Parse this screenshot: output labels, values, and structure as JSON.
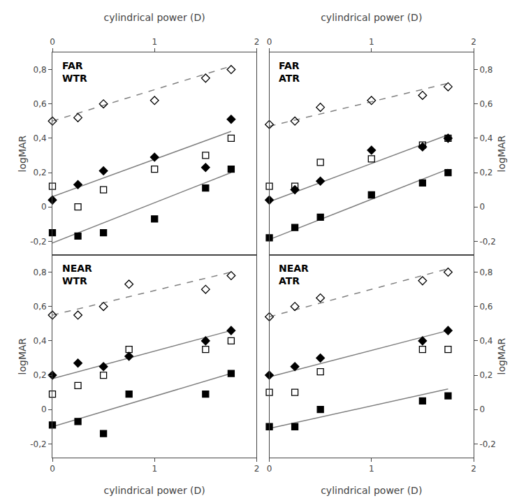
{
  "chart_data": [
    {
      "type": "scatter",
      "title": "FAR\nWTR",
      "xlabel": "cylindrical power (D)",
      "ylabel": "logMAR",
      "xlim": [
        0,
        2
      ],
      "ylim": [
        -0.28,
        0.9
      ],
      "xticks": [
        0,
        1,
        2
      ],
      "yticks": [
        {
          "value": -0.2,
          "label": "-0,2"
        },
        0,
        {
          "value": 0.2,
          "label": "0,2"
        },
        {
          "value": 0.4,
          "label": "0,4"
        },
        {
          "value": 0.6,
          "label": "0,6"
        },
        {
          "value": 0.8,
          "label": "0,8"
        }
      ],
      "grid": false,
      "series": [
        {
          "type": "line",
          "line_style": "dashed",
          "color": "#808080",
          "x": [
            0.0,
            1.75
          ],
          "values": [
            0.5,
            0.82
          ]
        },
        {
          "type": "line",
          "line_style": "solid",
          "color": "#808080",
          "x": [
            0.0,
            1.75
          ],
          "values": [
            0.06,
            0.44
          ]
        },
        {
          "type": "line",
          "line_style": "solid",
          "color": "#808080",
          "x": [
            0.0,
            1.75
          ],
          "values": [
            -0.21,
            0.2
          ]
        },
        {
          "type": "scatter",
          "marker": "diamond-open",
          "color": "#000000",
          "x": [
            0.0,
            0.25,
            0.5,
            1.0,
            1.5,
            1.75
          ],
          "values": [
            0.5,
            0.52,
            0.6,
            0.62,
            0.75,
            0.8
          ]
        },
        {
          "type": "scatter",
          "marker": "square-open",
          "color": "#000000",
          "x": [
            0.0,
            0.25,
            0.5,
            1.0,
            1.5,
            1.75
          ],
          "values": [
            0.12,
            0.0,
            0.1,
            0.22,
            0.3,
            0.4
          ]
        },
        {
          "type": "scatter",
          "marker": "diamond",
          "color": "#000000",
          "x": [
            0.0,
            0.25,
            0.5,
            1.0,
            1.5,
            1.75
          ],
          "values": [
            0.04,
            0.13,
            0.21,
            0.29,
            0.23,
            0.51
          ]
        },
        {
          "type": "scatter",
          "marker": "square",
          "color": "#000000",
          "x": [
            0.0,
            0.25,
            0.5,
            1.0,
            1.5,
            1.75
          ],
          "values": [
            -0.15,
            -0.17,
            -0.15,
            -0.07,
            0.11,
            0.22
          ]
        }
      ]
    },
    {
      "type": "scatter",
      "title": "FAR\nATR",
      "xlabel": "cylindrical power (D)",
      "ylabel": "logMAR",
      "xlim": [
        0,
        2
      ],
      "ylim": [
        -0.28,
        0.9
      ],
      "xticks": [
        0,
        1,
        2
      ],
      "yticks": [
        {
          "value": -0.2,
          "label": "-0,2"
        },
        0,
        {
          "value": 0.2,
          "label": "0,2"
        },
        {
          "value": 0.4,
          "label": "0,4"
        },
        {
          "value": 0.6,
          "label": "0,6"
        },
        {
          "value": 0.8,
          "label": "0,8"
        }
      ],
      "grid": false,
      "series": [
        {
          "type": "line",
          "line_style": "dashed",
          "color": "#808080",
          "x": [
            0.0,
            1.75
          ],
          "values": [
            0.47,
            0.72
          ]
        },
        {
          "type": "line",
          "line_style": "solid",
          "color": "#808080",
          "x": [
            0.0,
            1.75
          ],
          "values": [
            0.03,
            0.42
          ]
        },
        {
          "type": "line",
          "line_style": "solid",
          "color": "#808080",
          "x": [
            0.0,
            1.75
          ],
          "values": [
            -0.19,
            0.22
          ]
        },
        {
          "type": "scatter",
          "marker": "diamond-open",
          "color": "#000000",
          "x": [
            0.0,
            0.25,
            0.5,
            1.0,
            1.5,
            1.75
          ],
          "values": [
            0.48,
            0.5,
            0.58,
            0.62,
            0.65,
            0.7
          ]
        },
        {
          "type": "scatter",
          "marker": "square-open",
          "color": "#000000",
          "x": [
            0.0,
            0.25,
            0.5,
            1.0,
            1.5,
            1.75
          ],
          "values": [
            0.12,
            0.12,
            0.26,
            0.28,
            0.36,
            0.4
          ]
        },
        {
          "type": "scatter",
          "marker": "diamond",
          "color": "#000000",
          "x": [
            0.0,
            0.25,
            0.5,
            1.0,
            1.5,
            1.75
          ],
          "values": [
            0.04,
            0.1,
            0.15,
            0.33,
            0.35,
            0.4
          ]
        },
        {
          "type": "scatter",
          "marker": "square",
          "color": "#000000",
          "x": [
            0.0,
            0.25,
            0.5,
            1.0,
            1.5,
            1.75
          ],
          "values": [
            -0.18,
            -0.12,
            -0.06,
            0.07,
            0.14,
            0.2
          ]
        }
      ]
    },
    {
      "type": "scatter",
      "title": "NEAR\nWTR",
      "xlabel": "cylindrical power (D)",
      "ylabel": "logMAR",
      "xlim": [
        0,
        2
      ],
      "ylim": [
        -0.28,
        0.9
      ],
      "xticks": [
        0,
        1,
        2
      ],
      "yticks": [
        {
          "value": -0.2,
          "label": "-0,2"
        },
        0,
        {
          "value": 0.2,
          "label": "0,2"
        },
        {
          "value": 0.4,
          "label": "0,4"
        },
        {
          "value": 0.6,
          "label": "0,6"
        },
        {
          "value": 0.8,
          "label": "0,8"
        }
      ],
      "grid": false,
      "series": [
        {
          "type": "line",
          "line_style": "dashed",
          "color": "#808080",
          "x": [
            0.0,
            1.75
          ],
          "values": [
            0.55,
            0.8
          ]
        },
        {
          "type": "line",
          "line_style": "solid",
          "color": "#808080",
          "x": [
            0.0,
            1.75
          ],
          "values": [
            0.18,
            0.46
          ]
        },
        {
          "type": "line",
          "line_style": "solid",
          "color": "#808080",
          "x": [
            0.0,
            1.75
          ],
          "values": [
            -0.1,
            0.21
          ]
        },
        {
          "type": "scatter",
          "marker": "diamond-open",
          "color": "#000000",
          "x": [
            0.0,
            0.25,
            0.5,
            0.75,
            1.5,
            1.75
          ],
          "values": [
            0.55,
            0.55,
            0.6,
            0.73,
            0.7,
            0.78
          ]
        },
        {
          "type": "scatter",
          "marker": "square-open",
          "color": "#000000",
          "x": [
            0.0,
            0.25,
            0.5,
            0.75,
            1.5,
            1.75
          ],
          "values": [
            0.09,
            0.14,
            0.2,
            0.35,
            0.35,
            0.4
          ]
        },
        {
          "type": "scatter",
          "marker": "diamond",
          "color": "#000000",
          "x": [
            0.0,
            0.25,
            0.5,
            0.75,
            1.5,
            1.75
          ],
          "values": [
            0.2,
            0.27,
            0.25,
            0.31,
            0.4,
            0.46
          ]
        },
        {
          "type": "scatter",
          "marker": "square",
          "color": "#000000",
          "x": [
            0.0,
            0.25,
            0.5,
            0.75,
            1.5,
            1.75
          ],
          "values": [
            -0.09,
            -0.07,
            -0.14,
            0.09,
            0.09,
            0.21
          ]
        }
      ]
    },
    {
      "type": "scatter",
      "title": "NEAR\nATR",
      "xlabel": "cylindrical power (D)",
      "ylabel": "logMAR",
      "xlim": [
        0,
        2
      ],
      "ylim": [
        -0.28,
        0.9
      ],
      "xticks": [
        0,
        1,
        2
      ],
      "yticks": [
        {
          "value": -0.2,
          "label": "-0,2"
        },
        0,
        {
          "value": 0.2,
          "label": "0,2"
        },
        {
          "value": 0.4,
          "label": "0,4"
        },
        {
          "value": 0.6,
          "label": "0,6"
        },
        {
          "value": 0.8,
          "label": "0,8"
        }
      ],
      "grid": false,
      "series": [
        {
          "type": "line",
          "line_style": "dashed",
          "color": "#808080",
          "x": [
            0.0,
            1.75
          ],
          "values": [
            0.54,
            0.82
          ]
        },
        {
          "type": "line",
          "line_style": "solid",
          "color": "#808080",
          "x": [
            0.0,
            1.75
          ],
          "values": [
            0.19,
            0.46
          ]
        },
        {
          "type": "line",
          "line_style": "solid",
          "color": "#808080",
          "x": [
            0.0,
            1.75
          ],
          "values": [
            -0.11,
            0.12
          ]
        },
        {
          "type": "scatter",
          "marker": "diamond-open",
          "color": "#000000",
          "x": [
            0.0,
            0.25,
            0.5,
            1.5,
            1.75
          ],
          "values": [
            0.54,
            0.6,
            0.65,
            0.75,
            0.8
          ]
        },
        {
          "type": "scatter",
          "marker": "square-open",
          "color": "#000000",
          "x": [
            0.0,
            0.25,
            0.5,
            1.5,
            1.75
          ],
          "values": [
            0.1,
            0.1,
            0.22,
            0.35,
            0.35
          ]
        },
        {
          "type": "scatter",
          "marker": "diamond",
          "color": "#000000",
          "x": [
            0.0,
            0.25,
            0.5,
            1.5,
            1.75
          ],
          "values": [
            0.2,
            0.25,
            0.3,
            0.4,
            0.46
          ]
        },
        {
          "type": "scatter",
          "marker": "square",
          "color": "#000000",
          "x": [
            0.0,
            0.25,
            0.5,
            1.5,
            1.75
          ],
          "values": [
            -0.1,
            -0.1,
            0.0,
            0.05,
            0.08
          ]
        }
      ]
    }
  ]
}
